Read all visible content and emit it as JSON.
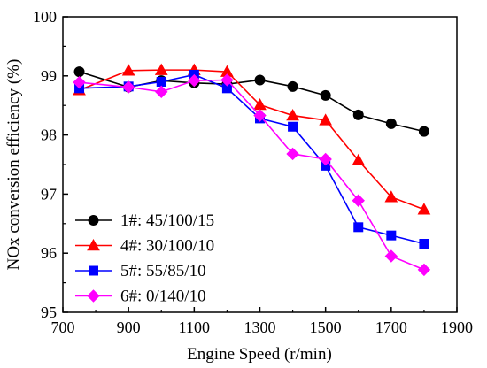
{
  "chart_data": {
    "type": "line",
    "xlabel": "Engine Speed (r/min)",
    "ylabel": "NOx conversion efficiency (%)",
    "xlim": [
      700,
      1900
    ],
    "ylim": [
      95,
      100
    ],
    "x_ticks": [
      700,
      900,
      1100,
      1300,
      1500,
      1700,
      1900
    ],
    "y_ticks": [
      95,
      96,
      97,
      98,
      99,
      100
    ],
    "x_tick_labels": [
      "700",
      "900",
      "1100",
      "1300",
      "1500",
      "1700",
      "1900"
    ],
    "y_tick_labels": [
      "95",
      "96",
      "97",
      "98",
      "99",
      "100"
    ],
    "grid": false,
    "legend_position": "bottom-left",
    "series": [
      {
        "name": "1#: 45/100/15",
        "color": "#000000",
        "marker": "circle",
        "x": [
          750,
          900,
          1000,
          1100,
          1200,
          1300,
          1400,
          1500,
          1600,
          1700,
          1800
        ],
        "values": [
          99.07,
          98.81,
          98.92,
          98.88,
          98.86,
          98.93,
          98.82,
          98.67,
          98.34,
          98.19,
          98.06
        ]
      },
      {
        "name": "4#: 30/100/10",
        "color": "#ff0000",
        "marker": "triangle",
        "x": [
          750,
          900,
          1000,
          1100,
          1200,
          1300,
          1400,
          1500,
          1600,
          1700,
          1800
        ],
        "values": [
          98.76,
          99.09,
          99.1,
          99.1,
          99.07,
          98.51,
          98.33,
          98.25,
          97.57,
          96.95,
          96.74
        ]
      },
      {
        "name": "5#: 55/85/10",
        "color": "#0000ff",
        "marker": "square",
        "x": [
          750,
          900,
          1000,
          1100,
          1200,
          1300,
          1400,
          1500,
          1600,
          1700,
          1800
        ],
        "values": [
          98.79,
          98.82,
          98.9,
          99.02,
          98.79,
          98.28,
          98.14,
          97.48,
          96.44,
          96.3,
          96.16
        ]
      },
      {
        "name": "6#: 0/140/10",
        "color": "#ff00ff",
        "marker": "diamond",
        "x": [
          750,
          900,
          1000,
          1100,
          1200,
          1300,
          1400,
          1500,
          1600,
          1700,
          1800
        ],
        "values": [
          98.89,
          98.81,
          98.73,
          98.92,
          98.93,
          98.33,
          97.68,
          97.59,
          96.89,
          95.95,
          95.72
        ]
      }
    ]
  }
}
